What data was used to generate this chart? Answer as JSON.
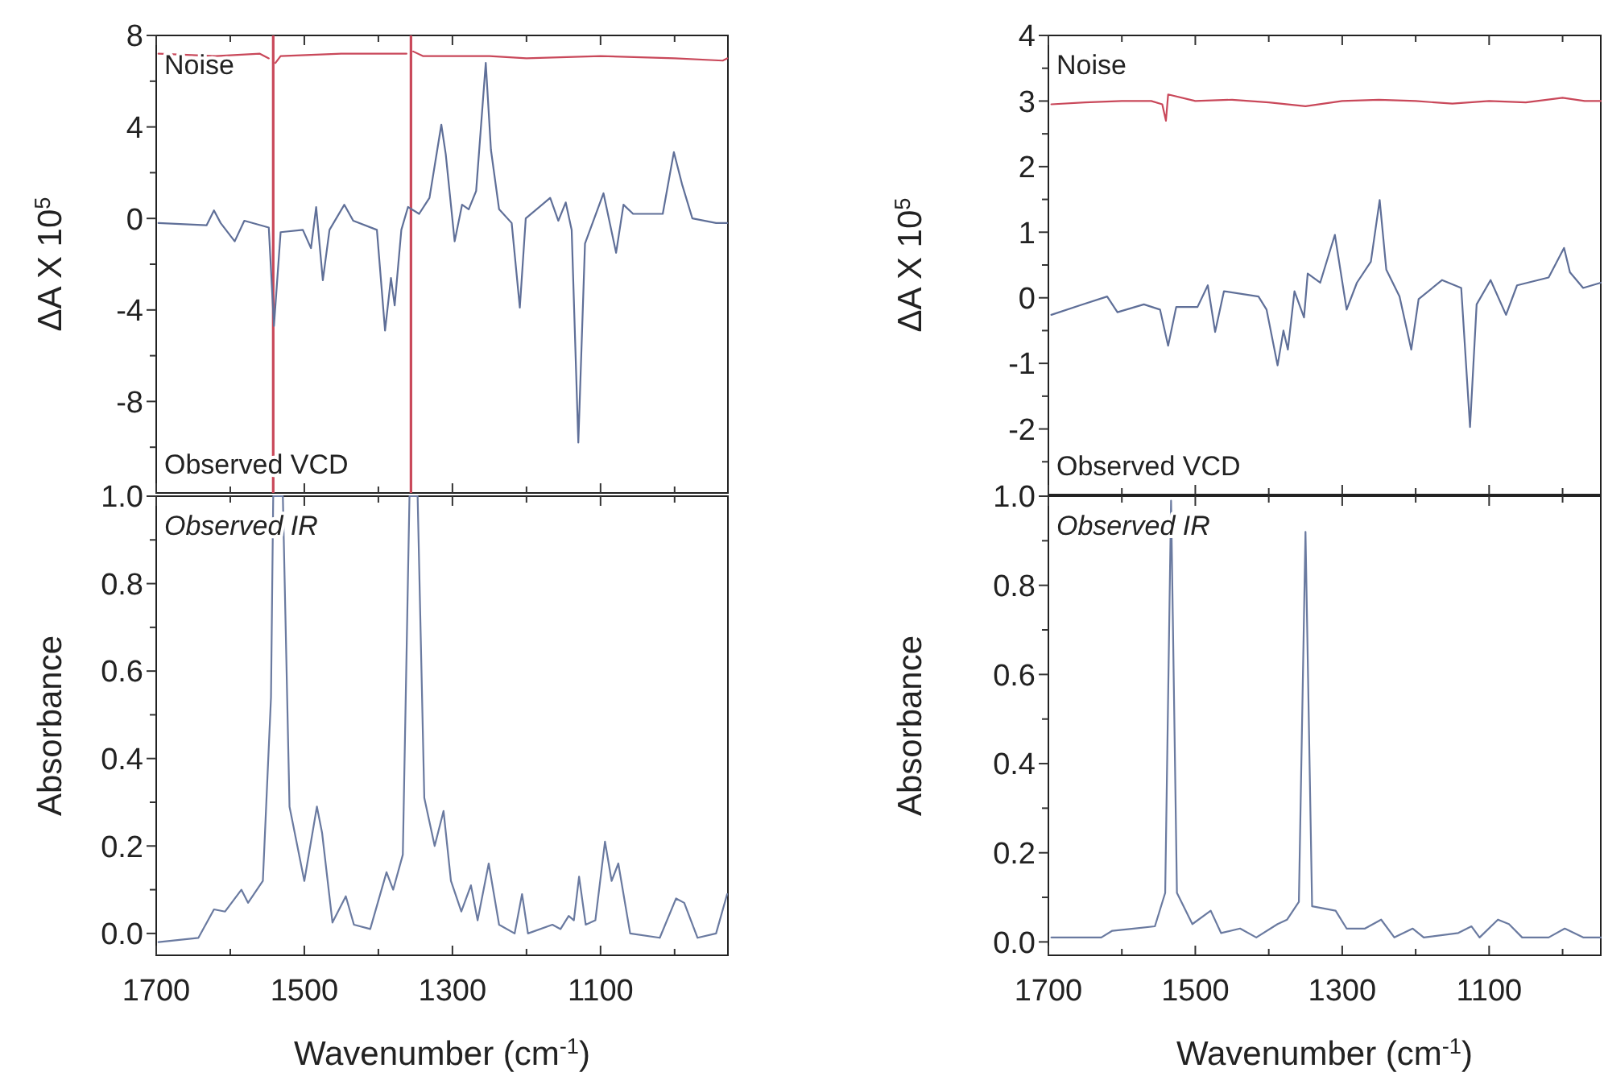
{
  "chart_data": [
    {
      "type": "line",
      "ylabel": "ΔA X 10$^{5}$",
      "annotations": [
        "Noise",
        "Observed VCD"
      ],
      "tick_labels": "y",
      "xlim": [
        1700,
        928
      ],
      "ylim": [
        -12,
        8
      ],
      "xticks": [
        1700,
        {
          "value": 1600,
          "label": null
        },
        1500,
        {
          "value": 1400,
          "label": null
        },
        1300,
        {
          "value": 1200,
          "label": null
        },
        1100,
        {
          "value": 1000,
          "label": null
        }
      ],
      "yticks": [
        {
          "value": -10,
          "label": null
        },
        -8,
        {
          "value": -6,
          "label": null
        },
        -4,
        {
          "value": -2,
          "label": null
        },
        0,
        {
          "value": 2,
          "label": null
        },
        4,
        {
          "value": 6,
          "label": null
        },
        8
      ],
      "series": [
        {
          "color": "#5f6f98",
          "x": [
            1697,
            1632,
            1622,
            1613,
            1594,
            1581,
            1548,
            1541,
            1532,
            1502,
            1491,
            1484,
            1475,
            1466,
            1446,
            1434,
            1402,
            1391,
            1383,
            1378,
            1369,
            1360,
            1345,
            1331,
            1315,
            1309,
            1297,
            1287,
            1278,
            1268,
            1255,
            1248,
            1237,
            1220,
            1209,
            1201,
            1168,
            1157,
            1147,
            1139,
            1130,
            1121,
            1096,
            1079,
            1069,
            1056,
            1016,
            1001,
            990,
            976,
            944,
            929
          ],
          "values": [
            -0.2,
            -0.3,
            0.35,
            -0.2,
            -1.0,
            -0.1,
            -0.4,
            -4.7,
            -0.6,
            -0.5,
            -1.3,
            0.5,
            -2.7,
            -0.5,
            0.6,
            -0.1,
            -0.5,
            -4.9,
            -2.6,
            -3.8,
            -0.5,
            0.5,
            0.2,
            0.9,
            4.1,
            2.8,
            -1.0,
            0.6,
            0.4,
            1.2,
            6.8,
            3.0,
            0.4,
            -0.2,
            -3.9,
            0.0,
            0.9,
            -0.1,
            0.7,
            -0.5,
            -9.8,
            -1.1,
            1.1,
            -1.5,
            0.6,
            0.2,
            0.2,
            2.9,
            1.5,
            0.0,
            -0.2,
            -0.2
          ]
        },
        {
          "color": "#c9485a",
          "x": [
            1697,
            1620,
            1560,
            1548,
            1542,
            1539,
            1532,
            1450,
            1400,
            1362,
            1356,
            1353,
            1340,
            1250,
            1200,
            1100,
            1000,
            935,
            929
          ],
          "values": [
            7.2,
            7.1,
            7.2,
            7.0,
            null,
            6.8,
            7.1,
            7.2,
            7.2,
            7.2,
            null,
            7.3,
            7.1,
            7.1,
            7.0,
            7.1,
            7.0,
            6.9,
            7.0
          ]
        }
      ],
      "ref_lines": [
        {
          "axis": "x",
          "value": 1542,
          "color": "#c9485a"
        },
        {
          "axis": "x",
          "value": 1356,
          "color": "#c9485a"
        }
      ]
    },
    {
      "type": "line",
      "xlabel": "Wavenumber (cm$^{-1}$)",
      "ylabel": "Absorbance",
      "annotations": [
        "Observed IR"
      ],
      "xlim": [
        1700,
        928
      ],
      "ylim": [
        -0.05,
        1.0
      ],
      "xticks": [
        1700,
        {
          "value": 1600,
          "label": null
        },
        1500,
        {
          "value": 1400,
          "label": null
        },
        1300,
        {
          "value": 1200,
          "label": null
        },
        1100,
        {
          "value": 1000,
          "label": null
        }
      ],
      "yticks": [
        {
          "value": 0.0,
          "label": "0.0"
        },
        {
          "value": 0.1,
          "label": null
        },
        0.2,
        {
          "value": 0.3,
          "label": null
        },
        0.4,
        {
          "value": 0.5,
          "label": null
        },
        0.6,
        {
          "value": 0.7,
          "label": null
        },
        0.8,
        {
          "value": 0.9,
          "label": null
        },
        {
          "value": 1.0,
          "label": "1.0"
        }
      ],
      "series": [
        {
          "color": "#6a7aa0",
          "x": [
            1697,
            1643,
            1622,
            1607,
            1585,
            1576,
            1556,
            1545,
            1542,
            1529,
            1520,
            1500,
            1483,
            1476,
            1462,
            1444,
            1433,
            1411,
            1389,
            1380,
            1367,
            1358,
            1347,
            1338,
            1324,
            1312,
            1302,
            1288,
            1275,
            1266,
            1251,
            1237,
            1216,
            1206,
            1198,
            1165,
            1154,
            1143,
            1136,
            1129,
            1120,
            1107,
            1094,
            1085,
            1076,
            1060,
            1020,
            998,
            987,
            969,
            944,
            929
          ],
          "values": [
            -0.02,
            -0.01,
            0.055,
            0.05,
            0.1,
            0.07,
            0.12,
            0.54,
            1.0,
            1.0,
            0.29,
            0.12,
            0.29,
            0.23,
            0.025,
            0.085,
            0.02,
            0.01,
            0.14,
            0.1,
            0.18,
            1.0,
            1.0,
            0.31,
            0.2,
            0.28,
            0.12,
            0.05,
            0.11,
            0.03,
            0.16,
            0.02,
            0.0,
            0.09,
            0.0,
            0.02,
            0.01,
            0.04,
            0.03,
            0.13,
            0.02,
            0.03,
            0.21,
            0.12,
            0.16,
            0.0,
            -0.01,
            0.08,
            0.07,
            -0.01,
            0.0,
            0.09
          ]
        }
      ]
    },
    {
      "type": "line",
      "ylabel": "ΔA X 10$^{5}$",
      "annotations": [
        "Noise",
        "Observed VCD"
      ],
      "tick_labels": "y",
      "xlim": [
        1700,
        948
      ],
      "ylim": [
        -3,
        4
      ],
      "xticks": [
        1700,
        {
          "value": 1600,
          "label": null
        },
        1500,
        {
          "value": 1400,
          "label": null
        },
        1300,
        {
          "value": 1200,
          "label": null
        },
        1100,
        {
          "value": 1000,
          "label": null
        }
      ],
      "yticks": [
        {
          "value": -2.5,
          "label": null
        },
        -2,
        {
          "value": -1.5,
          "label": null
        },
        -1,
        {
          "value": -0.5,
          "label": null
        },
        0,
        {
          "value": 0.5,
          "label": null
        },
        1,
        {
          "value": 1.5,
          "label": null
        },
        2,
        {
          "value": 2.5,
          "label": null
        },
        3,
        {
          "value": 3.5,
          "label": null
        },
        4
      ],
      "series": [
        {
          "color": "#5f6f98",
          "x": [
            1696,
            1656,
            1620,
            1606,
            1570,
            1548,
            1537,
            1526,
            1497,
            1483,
            1473,
            1461,
            1414,
            1403,
            1388,
            1380,
            1374,
            1365,
            1352,
            1347,
            1330,
            1310,
            1294,
            1280,
            1261,
            1249,
            1240,
            1222,
            1206,
            1196,
            1164,
            1138,
            1126,
            1117,
            1098,
            1077,
            1062,
            1019,
            998,
            990,
            972,
            948
          ],
          "values": [
            -0.26,
            -0.11,
            0.02,
            -0.22,
            -0.1,
            -0.18,
            -0.73,
            -0.14,
            -0.14,
            0.19,
            -0.52,
            0.1,
            0.02,
            -0.18,
            -1.03,
            -0.5,
            -0.79,
            0.1,
            -0.3,
            0.37,
            0.23,
            0.96,
            -0.18,
            0.23,
            0.55,
            1.49,
            0.43,
            0.02,
            -0.79,
            -0.02,
            0.27,
            0.15,
            -1.97,
            -0.1,
            0.27,
            -0.26,
            0.19,
            0.31,
            0.76,
            0.39,
            0.15,
            0.23
          ]
        },
        {
          "color": "#c9485a",
          "x": [
            1696,
            1650,
            1600,
            1560,
            1545,
            1540,
            1537,
            1500,
            1450,
            1400,
            1350,
            1300,
            1250,
            1200,
            1150,
            1100,
            1050,
            1000,
            970,
            948
          ],
          "values": [
            2.95,
            2.98,
            3.0,
            3.0,
            2.95,
            2.7,
            3.1,
            3.0,
            3.02,
            2.98,
            2.92,
            3.0,
            3.02,
            3.0,
            2.96,
            3.0,
            2.98,
            3.05,
            3.0,
            3.0
          ]
        }
      ]
    },
    {
      "type": "line",
      "xlabel": "Wavenumber (cm$^{-1}$)",
      "ylabel": "Absorbance",
      "annotations": [
        "Observed IR"
      ],
      "xlim": [
        1700,
        948
      ],
      "ylim": [
        -0.03,
        1.0
      ],
      "xticks": [
        1700,
        {
          "value": 1600,
          "label": null
        },
        1500,
        {
          "value": 1400,
          "label": null
        },
        1300,
        {
          "value": 1200,
          "label": null
        },
        1100,
        {
          "value": 1000,
          "label": null
        }
      ],
      "yticks": [
        {
          "value": 0.0,
          "label": "0.0"
        },
        {
          "value": 0.1,
          "label": null
        },
        0.2,
        {
          "value": 0.3,
          "label": null
        },
        0.4,
        {
          "value": 0.5,
          "label": null
        },
        0.6,
        {
          "value": 0.7,
          "label": null
        },
        0.8,
        {
          "value": 0.9,
          "label": null
        },
        {
          "value": 1.0,
          "label": "1.0"
        }
      ],
      "series": [
        {
          "color": "#6a7aa0",
          "x": [
            1696,
            1628,
            1613,
            1584,
            1555,
            1541,
            1533,
            1525,
            1504,
            1479,
            1465,
            1439,
            1417,
            1388,
            1375,
            1359,
            1350,
            1341,
            1309,
            1294,
            1269,
            1247,
            1229,
            1204,
            1189,
            1142,
            1124,
            1113,
            1088,
            1073,
            1055,
            1019,
            997,
            972,
            948
          ],
          "values": [
            0.01,
            0.01,
            0.025,
            0.03,
            0.035,
            0.11,
            0.99,
            0.11,
            0.04,
            0.07,
            0.02,
            0.03,
            0.01,
            0.04,
            0.05,
            0.09,
            0.92,
            0.08,
            0.07,
            0.03,
            0.03,
            0.05,
            0.01,
            0.03,
            0.01,
            0.02,
            0.035,
            0.01,
            0.05,
            0.04,
            0.01,
            0.01,
            0.03,
            0.01,
            0.01
          ]
        }
      ]
    }
  ]
}
